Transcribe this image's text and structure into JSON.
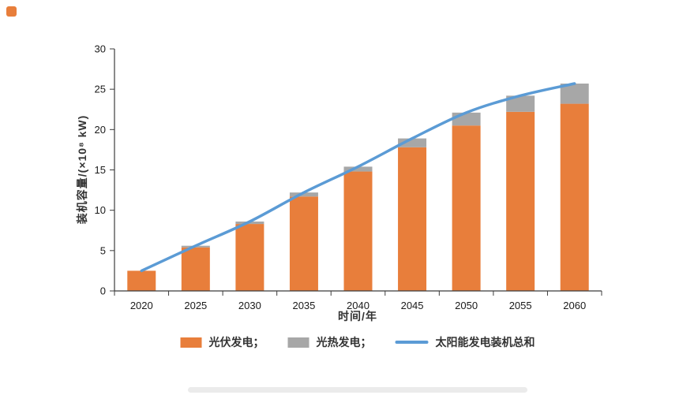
{
  "page": {
    "background": "#ffffff"
  },
  "chart_data": {
    "type": "bar",
    "subtype": "stacked-bars-with-total-line",
    "title": "",
    "xlabel": "时间/年",
    "ylabel": "装机容量/(×10⁸ kW)",
    "categories": [
      "2020",
      "2025",
      "2030",
      "2035",
      "2040",
      "2045",
      "2050",
      "2055",
      "2060"
    ],
    "series": [
      {
        "name": "光伏发电",
        "type": "bar",
        "color": "#E87E3B",
        "values": [
          2.5,
          5.4,
          8.3,
          11.7,
          14.8,
          17.8,
          20.5,
          22.2,
          23.2
        ]
      },
      {
        "name": "光热发电",
        "type": "bar",
        "color": "#A7A7A7",
        "values": [
          0,
          0.2,
          0.3,
          0.5,
          0.6,
          1.1,
          1.6,
          2.0,
          2.5
        ]
      },
      {
        "name": "太阳能发电装机总和",
        "type": "line",
        "color": "#5B9BD5",
        "values": [
          2.5,
          5.6,
          8.6,
          12.2,
          15.4,
          18.9,
          22.1,
          24.2,
          25.7
        ]
      }
    ],
    "ylim": [
      0,
      30
    ],
    "y_ticks": [
      0,
      5,
      10,
      15,
      20,
      25,
      30
    ],
    "grid": false,
    "legend_position": "bottom"
  },
  "legend": {
    "items": [
      {
        "label": "光伏发电；",
        "swatch": "bar",
        "color": "#E87E3B"
      },
      {
        "label": "光热发电；",
        "swatch": "bar",
        "color": "#A7A7A7"
      },
      {
        "label": "太阳能发电装机总和",
        "swatch": "line",
        "color": "#5B9BD5"
      }
    ]
  },
  "style": {
    "axis_color": "#3c3c3c",
    "tick_label_color": "#1a1a1a",
    "tick_font_size": 13
  }
}
